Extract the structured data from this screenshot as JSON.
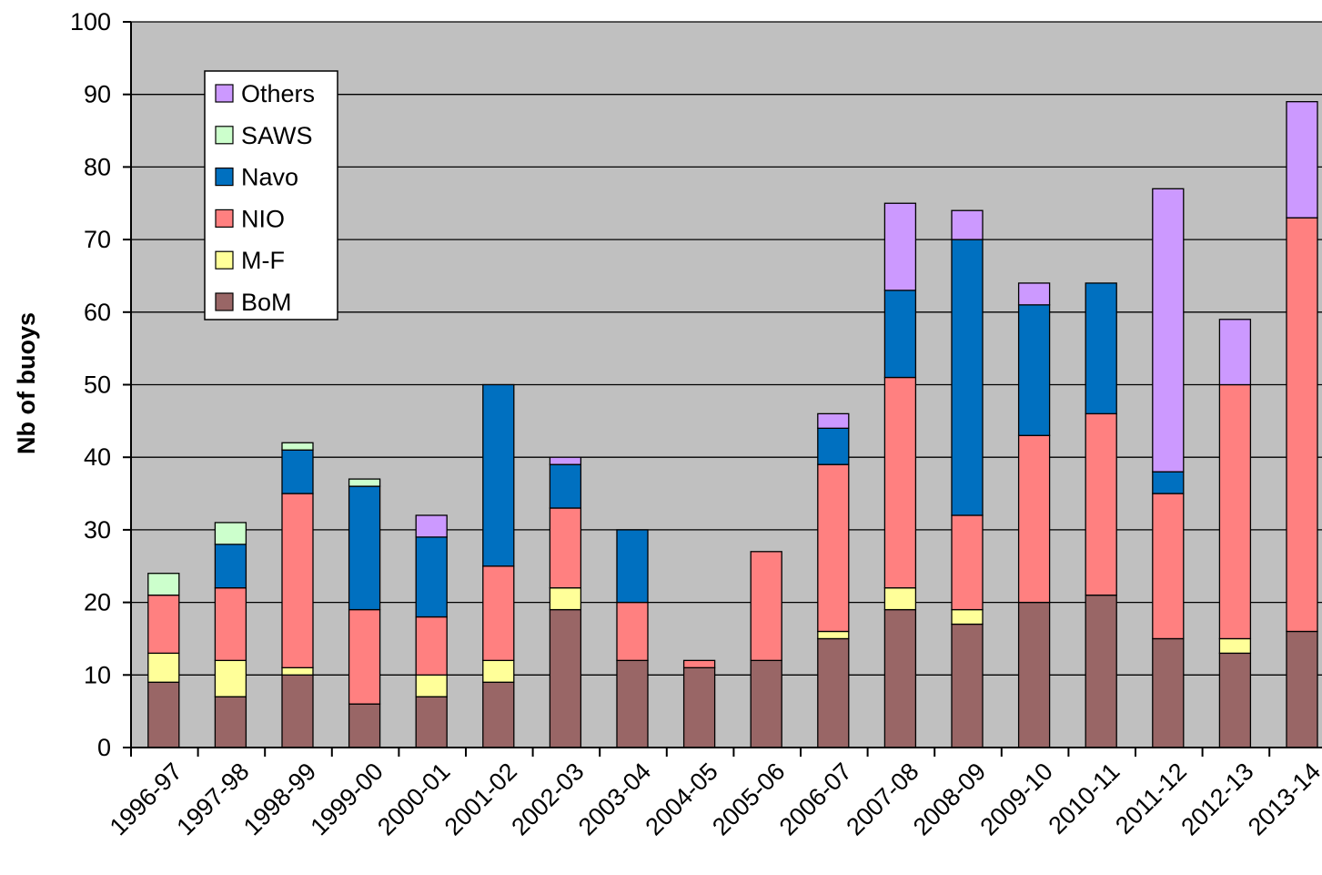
{
  "chart_data": {
    "type": "bar",
    "stacked": true,
    "title": "",
    "xlabel": "",
    "ylabel": "Nb of buoys",
    "ylim": [
      0,
      100
    ],
    "yticks": [
      0,
      10,
      20,
      30,
      40,
      50,
      60,
      70,
      80,
      90,
      100
    ],
    "grid": "horizontal",
    "legend_position": "top-left",
    "plot_background": "#c0c0c0",
    "categories": [
      "1996-97",
      "1997-98",
      "1998-99",
      "1999-00",
      "2000-01",
      "2001-02",
      "2002-03",
      "2003-04",
      "2004-05",
      "2005-06",
      "2006-07",
      "2007-08",
      "2008-09",
      "2009-10",
      "2010-11",
      "2011-12",
      "2012-13",
      "2013-14"
    ],
    "series": [
      {
        "name": "BoM",
        "color": "#996666",
        "values": [
          9,
          7,
          10,
          6,
          7,
          9,
          19,
          12,
          11,
          12,
          15,
          19,
          17,
          20,
          21,
          15,
          13,
          16
        ]
      },
      {
        "name": "M-F",
        "color": "#ffff99",
        "values": [
          4,
          5,
          1,
          0,
          3,
          3,
          3,
          0,
          0,
          0,
          1,
          3,
          2,
          0,
          0,
          0,
          2,
          0
        ]
      },
      {
        "name": "NIO",
        "color": "#ff8080",
        "values": [
          8,
          10,
          24,
          13,
          8,
          13,
          11,
          8,
          1,
          15,
          23,
          29,
          13,
          23,
          25,
          20,
          35,
          57
        ]
      },
      {
        "name": "Navo",
        "color": "#0070c0",
        "values": [
          0,
          6,
          6,
          17,
          11,
          25,
          6,
          10,
          0,
          0,
          5,
          12,
          38,
          18,
          18,
          3,
          0,
          0
        ]
      },
      {
        "name": "SAWS",
        "color": "#ccffcc",
        "values": [
          3,
          3,
          1,
          1,
          0,
          0,
          0,
          0,
          0,
          0,
          0,
          0,
          0,
          0,
          0,
          0,
          0,
          0
        ]
      },
      {
        "name": "Others",
        "color": "#cc99ff",
        "values": [
          0,
          0,
          0,
          0,
          3,
          0,
          1,
          0,
          0,
          0,
          2,
          12,
          4,
          3,
          0,
          39,
          9,
          16
        ]
      }
    ]
  }
}
